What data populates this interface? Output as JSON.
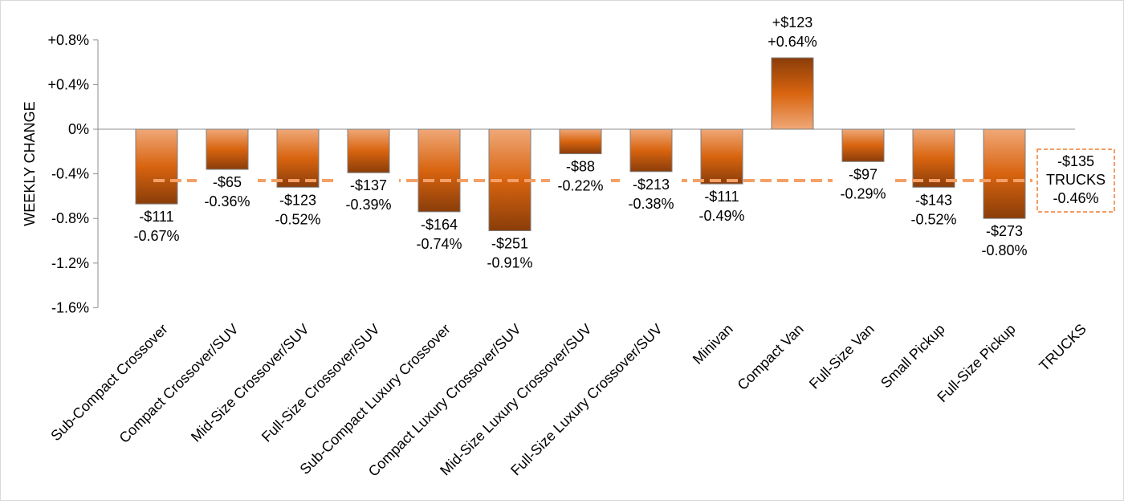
{
  "chart_data": {
    "type": "bar",
    "ylabel": "WEEKLY CHANGE",
    "ylim": [
      -1.6,
      0.8
    ],
    "y_ticks": [
      0.8,
      0.4,
      0,
      -0.4,
      -0.8,
      -1.2,
      -1.6
    ],
    "y_tick_labels": [
      "+0.8%",
      "+0.4%",
      "0%",
      "-0.4%",
      "-0.8%",
      "-1.2%",
      "-1.6%"
    ],
    "grid": false,
    "categories": [
      "Sub-Compact Crossover",
      "Compact Crossover/SUV",
      "Mid-Size Crossover/SUV",
      "Full-Size Crossover/SUV",
      "Sub-Compact Luxury Crossover",
      "Compact Luxury Crossover/SUV",
      "Mid-Size Luxury Crossover/SUV",
      "Full-Size Luxury Crossover/SUV",
      "Minivan",
      "Compact Van",
      "Full-Size Van",
      "Small Pickup",
      "Full-Size Pickup",
      "TRUCKS"
    ],
    "values": [
      -0.67,
      -0.36,
      -0.52,
      -0.39,
      -0.74,
      -0.91,
      -0.22,
      -0.38,
      -0.49,
      0.64,
      -0.29,
      -0.52,
      -0.8,
      null
    ],
    "dollar_labels": [
      "-$111",
      "-$65",
      "-$123",
      "-$137",
      "-$164",
      "-$251",
      "-$88",
      "-$213",
      "-$111",
      "+$123",
      "-$97",
      "-$143",
      "-$273",
      "-$135"
    ],
    "percent_labels": [
      "-0.67%",
      "-0.36%",
      "-0.52%",
      "-0.39%",
      "-0.74%",
      "-0.91%",
      "-0.22%",
      "-0.38%",
      "-0.49%",
      "+0.64%",
      "-0.29%",
      "-0.52%",
      "-0.80%",
      "-0.46%"
    ],
    "average": {
      "value": -0.46,
      "label_lines": [
        "-$135",
        "TRUCKS",
        "-0.46%"
      ]
    },
    "colors": {
      "bar_dark": "#8a3d0a",
      "bar_mid": "#d8640f",
      "bar_light": "#f0a878",
      "bar_border": "#7f7f7f",
      "average_line": "#f4a066",
      "callout_border": "#ed7d31",
      "axis": "#8c8c8c",
      "text": "#000000"
    }
  }
}
